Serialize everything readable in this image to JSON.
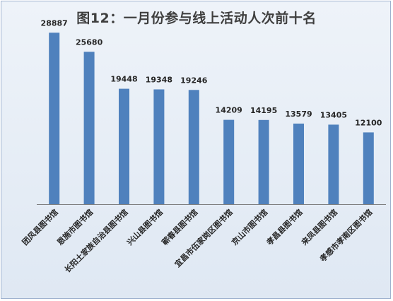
{
  "chart_data": {
    "type": "bar",
    "title": "图12：一月份参与线上活动人次前十名",
    "categories": [
      "团风县图书馆",
      "恩施市图书馆",
      "长阳土家族自治县图书馆",
      "兴山县图书馆",
      "蕲春县图书馆",
      "宜昌市伍家岗区图书馆",
      "京山市图书馆",
      "孝昌县图书馆",
      "来凤县图书馆",
      "孝感市孝南区图书馆"
    ],
    "values": [
      28887,
      25680,
      19448,
      19348,
      19246,
      14209,
      14195,
      13579,
      13405,
      12100
    ],
    "ylim": [
      0,
      30000
    ],
    "grid": false,
    "legend": "none",
    "bar_color": "#4f81bd",
    "axis_color": "#7f7f7f",
    "text_color": "#262626"
  }
}
